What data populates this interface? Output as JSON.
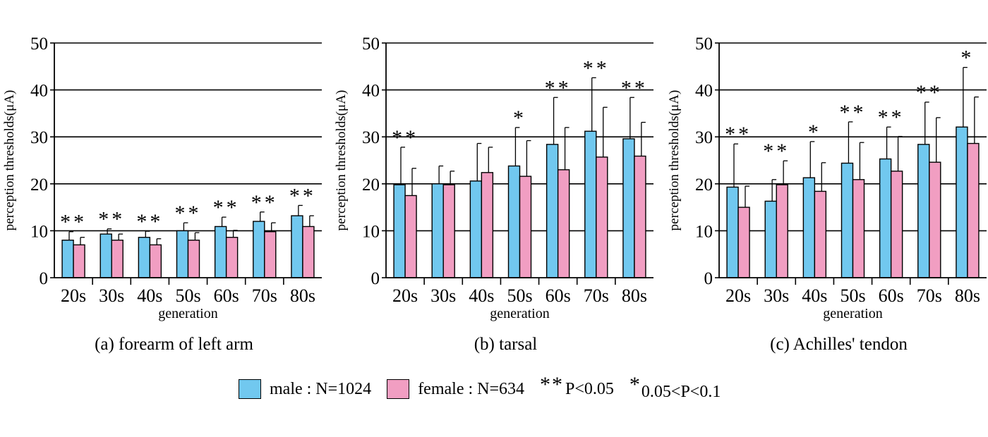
{
  "colors": {
    "male": "#71c8ef",
    "female": "#f19ec2",
    "axis": "#000000"
  },
  "legend": {
    "male_label": "male : N=1024",
    "female_label": "female : N=634",
    "sig_strong_stars": "**",
    "sig_strong_label": "P<0.05",
    "sig_weak_stars": "*",
    "sig_weak_label": "0.05<P<0.1"
  },
  "chart_data": [
    {
      "type": "bar",
      "caption": "(a) forearm of left arm",
      "xlabel": "generation",
      "ylabel": "perception thresholds(μA)",
      "ylim": [
        0,
        50
      ],
      "yticks": [
        0,
        10,
        20,
        30,
        40,
        50
      ],
      "grid": true,
      "categories": [
        "20s",
        "30s",
        "40s",
        "50s",
        "60s",
        "70s",
        "80s"
      ],
      "series": [
        {
          "name": "male",
          "values": [
            8.0,
            9.3,
            8.6,
            10.0,
            10.9,
            12.0,
            13.2
          ],
          "errors": [
            1.8,
            1.1,
            1.3,
            1.7,
            2.0,
            2.0,
            2.2
          ]
        },
        {
          "name": "female",
          "values": [
            7.0,
            8.0,
            7.0,
            8.0,
            8.6,
            9.8,
            10.9
          ],
          "errors": [
            1.6,
            1.3,
            1.3,
            1.6,
            1.5,
            1.9,
            2.3
          ]
        }
      ],
      "significance": [
        "**",
        "**",
        "**",
        "**",
        "**",
        "**",
        "**"
      ]
    },
    {
      "type": "bar",
      "caption": "(b) tarsal",
      "xlabel": "generation",
      "ylabel": "perception thresholds(μA)",
      "ylim": [
        0,
        50
      ],
      "yticks": [
        0,
        10,
        20,
        30,
        40,
        50
      ],
      "grid": true,
      "categories": [
        "20s",
        "30s",
        "40s",
        "50s",
        "60s",
        "70s",
        "80s"
      ],
      "series": [
        {
          "name": "male",
          "values": [
            19.8,
            20.0,
            20.6,
            23.8,
            28.4,
            31.2,
            29.6
          ],
          "errors": [
            8.0,
            3.8,
            8.0,
            8.2,
            10.0,
            11.4,
            8.8
          ]
        },
        {
          "name": "female",
          "values": [
            17.5,
            19.8,
            22.4,
            21.6,
            23.0,
            25.7,
            25.9
          ],
          "errors": [
            5.8,
            2.9,
            5.4,
            7.6,
            9.0,
            10.6,
            7.2
          ]
        }
      ],
      "significance": [
        "**",
        "",
        "",
        "*",
        "**",
        "**",
        "**"
      ]
    },
    {
      "type": "bar",
      "caption": "(c) Achilles' tendon",
      "xlabel": "generation",
      "ylabel": "perception thresholds(μA)",
      "ylim": [
        0,
        50
      ],
      "yticks": [
        0,
        10,
        20,
        30,
        40,
        50
      ],
      "grid": true,
      "categories": [
        "20s",
        "30s",
        "40s",
        "50s",
        "60s",
        "70s",
        "80s"
      ],
      "series": [
        {
          "name": "male",
          "values": [
            19.3,
            16.3,
            21.3,
            24.4,
            25.3,
            28.4,
            32.1
          ],
          "errors": [
            9.2,
            4.6,
            7.7,
            8.8,
            6.8,
            9.0,
            12.7
          ]
        },
        {
          "name": "female",
          "values": [
            15.0,
            19.8,
            18.4,
            20.9,
            22.7,
            24.6,
            28.6
          ],
          "errors": [
            4.5,
            5.1,
            6.1,
            7.9,
            7.4,
            9.5,
            9.9
          ]
        }
      ],
      "significance": [
        "**",
        "**",
        "*",
        "**",
        "**",
        "**",
        "*"
      ]
    }
  ]
}
